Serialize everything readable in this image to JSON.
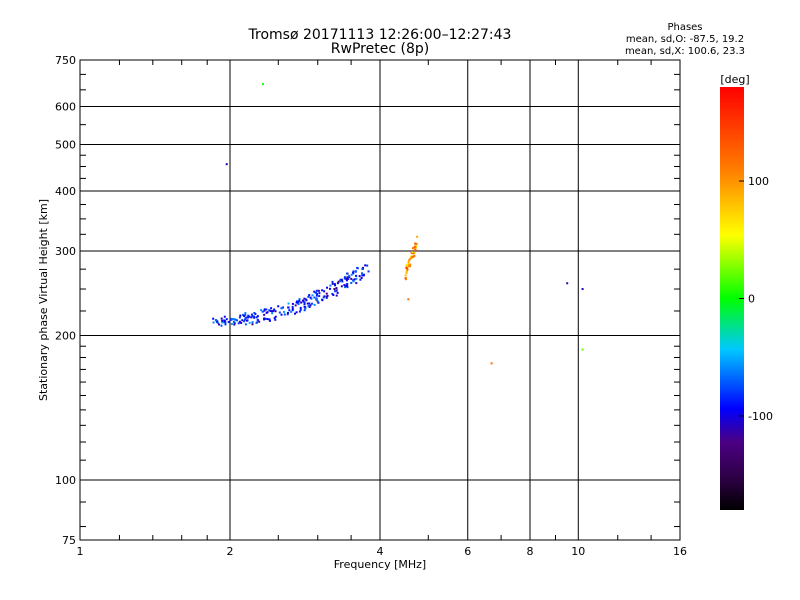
{
  "title_line1": "Tromsø 20171113 12:26:00–12:27:43",
  "title_line2": "RwPretec (8p)",
  "stats": {
    "heading": "Phases",
    "line_o": "mean, sd,O: -87.5, 19.2",
    "line_x": "mean, sd,X: 100.6, 23.3"
  },
  "chart_data": {
    "type": "scatter",
    "xlabel": "Frequency [MHz]",
    "ylabel": "Stationary phase Virtual Height [km]",
    "xscale": "log",
    "yscale": "log",
    "xlim": [
      1,
      16
    ],
    "ylim": [
      75,
      750
    ],
    "x_ticks": [
      1,
      2,
      4,
      6,
      8,
      10,
      16
    ],
    "y_ticks": [
      75,
      100,
      200,
      300,
      400,
      500,
      600,
      750
    ],
    "colorbar": {
      "label": "[deg]",
      "range": [
        -180,
        180
      ],
      "ticks": [
        100,
        0,
        -100
      ]
    },
    "points": [
      {
        "x": 2.33,
        "y": 668,
        "phase": 5
      },
      {
        "x": 1.97,
        "y": 455,
        "phase": -110
      },
      {
        "x": 4.56,
        "y": 238,
        "phase": 120
      },
      {
        "x": 6.7,
        "y": 175,
        "phase": 120
      },
      {
        "x": 9.5,
        "y": 257,
        "phase": -110
      },
      {
        "x": 10.2,
        "y": 250,
        "phase": -110
      },
      {
        "x": 10.2,
        "y": 187,
        "phase": 20
      }
    ],
    "clusters": [
      {
        "name": "o-trace",
        "x_range": [
          1.85,
          3.8
        ],
        "h_start": 214,
        "h_end": 278,
        "curvature": 2.2,
        "phase_mean": -87.5,
        "phase_sd": 19.2,
        "count": 260
      },
      {
        "name": "x-trace",
        "x_range": [
          4.5,
          4.75
        ],
        "h_start": 268,
        "h_end": 312,
        "curvature": 1.0,
        "phase_mean": 100.6,
        "phase_sd": 23.3,
        "count": 50
      }
    ]
  }
}
